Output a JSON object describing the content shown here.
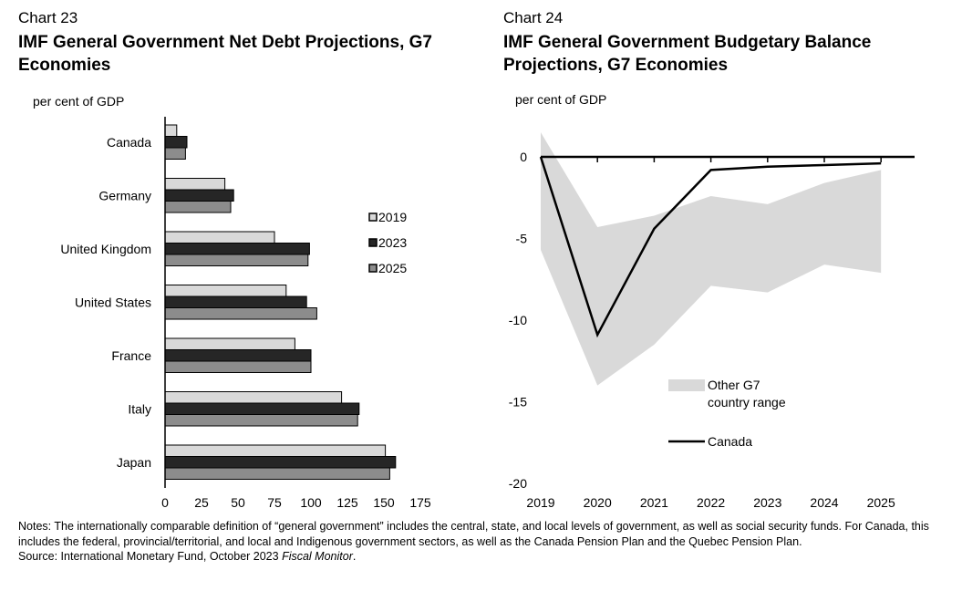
{
  "left": {
    "chart_number": "Chart 23",
    "title": "IMF General Government Net Debt Projections, G7 Economies",
    "unit": "per cent of GDP"
  },
  "right": {
    "chart_number": "Chart 24",
    "title": "IMF General Government Budgetary Balance Projections, G7 Economies",
    "unit": "per cent of GDP"
  },
  "notes": {
    "text": "Notes: The internationally comparable definition of “general government” includes the central, state, and local levels of government, as well as social security funds. For Canada, this includes the federal, provincial/territorial, and local and Indigenous government sectors, as well as the Canada Pension Plan and the Quebec Pension Plan.",
    "source_prefix": "Source: International Monetary Fund, October 2023 ",
    "source_italic": "Fiscal Monitor",
    "source_suffix": "."
  },
  "colors": {
    "bar_2019": "#d9d9d9",
    "bar_2023": "#262626",
    "bar_2025": "#8c8c8c",
    "range_fill": "#d9d9d9",
    "canada_line": "#000000"
  },
  "chart_data": [
    {
      "type": "bar",
      "orientation": "horizontal",
      "categories": [
        "Canada",
        "Germany",
        "United Kingdom",
        "United States",
        "France",
        "Italy",
        "Japan"
      ],
      "series": [
        {
          "name": "2019",
          "values": [
            8,
            41,
            75,
            83,
            89,
            121,
            151
          ]
        },
        {
          "name": "2023",
          "values": [
            15,
            47,
            99,
            97,
            100,
            133,
            158
          ]
        },
        {
          "name": "2025",
          "values": [
            14,
            45,
            98,
            104,
            100,
            132,
            154
          ]
        }
      ],
      "xlim": [
        0,
        175
      ],
      "xticks": [
        0,
        25,
        50,
        75,
        100,
        125,
        150,
        175
      ],
      "legend": "right"
    },
    {
      "type": "line",
      "x": [
        2019,
        2020,
        2021,
        2022,
        2023,
        2024,
        2025
      ],
      "series": [
        {
          "name": "Canada",
          "values": [
            0,
            -10.9,
            -4.4,
            -0.8,
            -0.6,
            -0.5,
            -0.4
          ]
        }
      ],
      "range_band": {
        "name": "Other G7 country range",
        "x": [
          2019,
          2020,
          2021,
          2022,
          2023,
          2024,
          2025
        ],
        "upper": [
          1.5,
          -4.3,
          -3.6,
          -2.4,
          -2.9,
          -1.6,
          -0.8
        ],
        "lower": [
          -5.7,
          -14.0,
          -11.5,
          -7.9,
          -8.3,
          -6.6,
          -7.1
        ]
      },
      "ylim": [
        -20,
        2
      ],
      "yticks": [
        0,
        -5,
        -10,
        -15,
        -20
      ],
      "legend": "lower-middle"
    }
  ]
}
